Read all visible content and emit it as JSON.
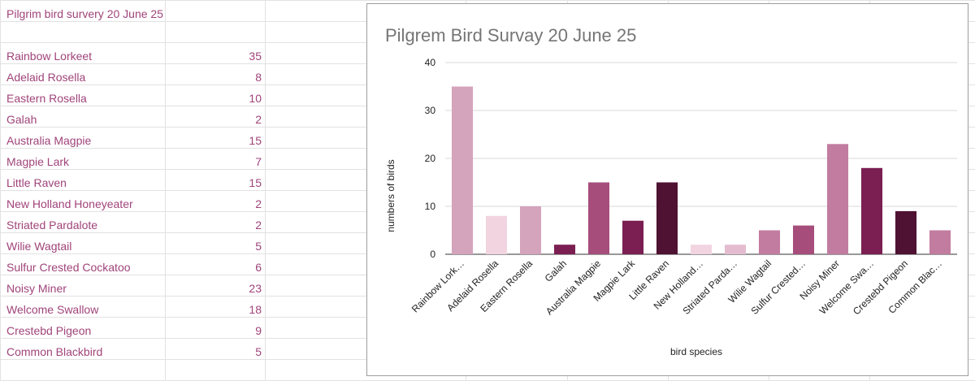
{
  "sheet": {
    "title": "Pilgrim bird survery 20 June 25",
    "rows": [
      {
        "species": "Rainbow Lorkeet",
        "count": "35"
      },
      {
        "species": "Adelaid Rosella",
        "count": "8"
      },
      {
        "species": "Eastern Rosella",
        "count": "10"
      },
      {
        "species": "Galah",
        "count": "2"
      },
      {
        "species": "Australia Magpie",
        "count": "15"
      },
      {
        "species": "Magpie Lark",
        "count": "7"
      },
      {
        "species": "Little Raven",
        "count": "15"
      },
      {
        "species": "New Holland Honeyeater",
        "count": "2"
      },
      {
        "species": "Striated Pardalote",
        "count": "2"
      },
      {
        "species": "Wilie Wagtail",
        "count": "5"
      },
      {
        "species": "Sulfur Crested Cockatoo",
        "count": "6"
      },
      {
        "species": "Noisy Miner",
        "count": "23"
      },
      {
        "species": "Welcome Swallow",
        "count": "18"
      },
      {
        "species": "Crestebd Pigeon",
        "count": "9"
      },
      {
        "species": "Common Blackbird",
        "count": "5"
      }
    ]
  },
  "chart_data": {
    "type": "bar",
    "title": "Pilgrem Bird Survay 20 June 25",
    "xlabel": "bird species",
    "ylabel": "numbers of birds",
    "ylim": [
      0,
      40
    ],
    "yticks": [
      "0",
      "10",
      "20",
      "30",
      "40"
    ],
    "grid": true,
    "legend": "none",
    "categories": [
      "Rainbow Lork…",
      "Adelaid Rosella",
      "Eastern Rosella",
      "Galah",
      "Australia Magpie",
      "Magpie Lark",
      "Little Raven",
      "New Holland…",
      "Striated Parda…",
      "Wilie Wagtail",
      "Sulfur Crested…",
      "Noisy Miner",
      "Welcome Swa…",
      "Crestebd Pigeon",
      "Common Blac…"
    ],
    "values": [
      35,
      8,
      10,
      2,
      15,
      7,
      15,
      2,
      2,
      5,
      6,
      23,
      18,
      9,
      5
    ],
    "colors": [
      "#d4a3bc",
      "#f1d4e0",
      "#d4a3bc",
      "#7b1f52",
      "#a64d7c",
      "#7b1f52",
      "#4f1233",
      "#f1d4e0",
      "#e4bccf",
      "#c27ca0",
      "#a64d7c",
      "#c27ca0",
      "#7b1f52",
      "#4f1233",
      "#c27ca0"
    ]
  }
}
